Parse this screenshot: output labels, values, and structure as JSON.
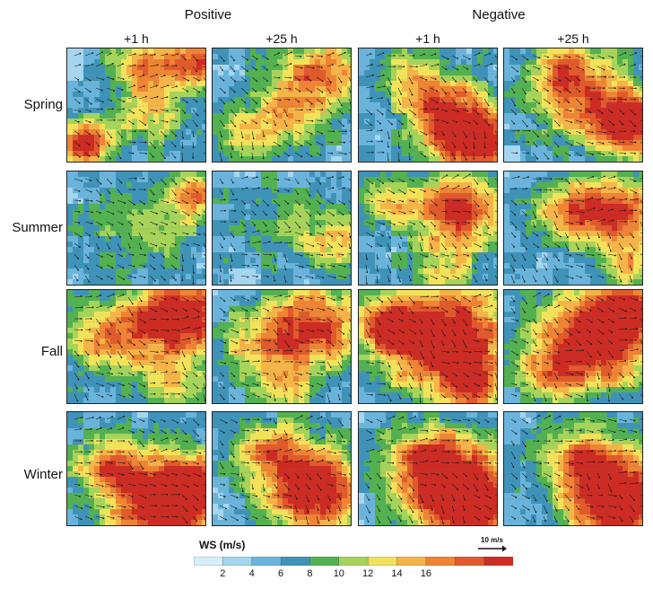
{
  "groups": [
    {
      "label": "Positive"
    },
    {
      "label": "Negative"
    }
  ],
  "columns": [
    {
      "label": "+1 h"
    },
    {
      "label": "+25 h"
    },
    {
      "label": "+1 h"
    },
    {
      "label": "+25 h"
    }
  ],
  "rows": [
    {
      "label": "Spring"
    },
    {
      "label": "Summer"
    },
    {
      "label": "Fall"
    },
    {
      "label": "Winter"
    }
  ],
  "colorbar": {
    "title": "WS (m/s)",
    "tick_labels": [
      "2",
      "4",
      "6",
      "8",
      "10",
      "12",
      "14",
      "16"
    ],
    "colors": [
      "#d6eef9",
      "#a6d6ef",
      "#6ab4dc",
      "#3f93b8",
      "#53b151",
      "#a6d35a",
      "#f2e25a",
      "#f4b448",
      "#ee8434",
      "#e05a2c",
      "#cc2c24"
    ]
  },
  "reference_arrow": {
    "label": "10 m/s"
  }
}
